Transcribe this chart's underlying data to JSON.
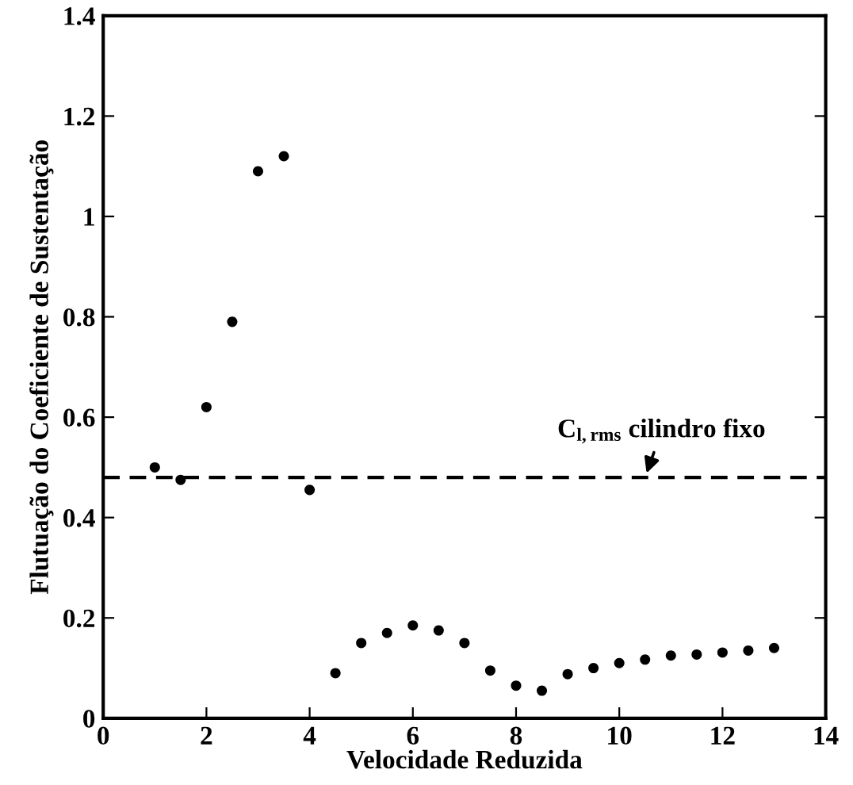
{
  "chart_data": {
    "type": "scatter",
    "xlabel": "Velocidade Reduzida",
    "ylabel": "Flutuação do Coeficiente de Sustentação",
    "x": [
      1,
      1.5,
      2,
      2.5,
      3,
      3.5,
      4,
      4.5,
      5,
      5.5,
      6,
      6.5,
      7,
      7.5,
      8,
      8.5,
      9,
      9.5,
      10,
      10.5,
      11,
      11.5,
      12,
      12.5,
      13
    ],
    "values": [
      0.5,
      0.475,
      0.62,
      0.79,
      1.09,
      1.12,
      0.455,
      0.09,
      0.15,
      0.17,
      0.185,
      0.175,
      0.15,
      0.095,
      0.065,
      0.055,
      0.088,
      0.1,
      0.11,
      0.117,
      0.125,
      0.127,
      0.131,
      0.135,
      0.14
    ],
    "color": "#000000",
    "marker": "circle",
    "xlim": [
      0,
      14
    ],
    "xticks": [
      0,
      2,
      4,
      6,
      8,
      10,
      12,
      14
    ],
    "ylim": [
      0,
      1.4
    ],
    "yticks": [
      0,
      0.2,
      0.4,
      0.6,
      0.8,
      1,
      1.2,
      1.4
    ],
    "ref_lines": [
      {
        "axis": "y",
        "value": 0.48,
        "color": "#000000",
        "line_style": "dashed"
      }
    ],
    "annotations": [
      {
        "text": "C$_{l,rms}$ cilindro fixo",
        "x": 10.5,
        "y": 0.48
      }
    ],
    "grid": false,
    "legend": false
  }
}
